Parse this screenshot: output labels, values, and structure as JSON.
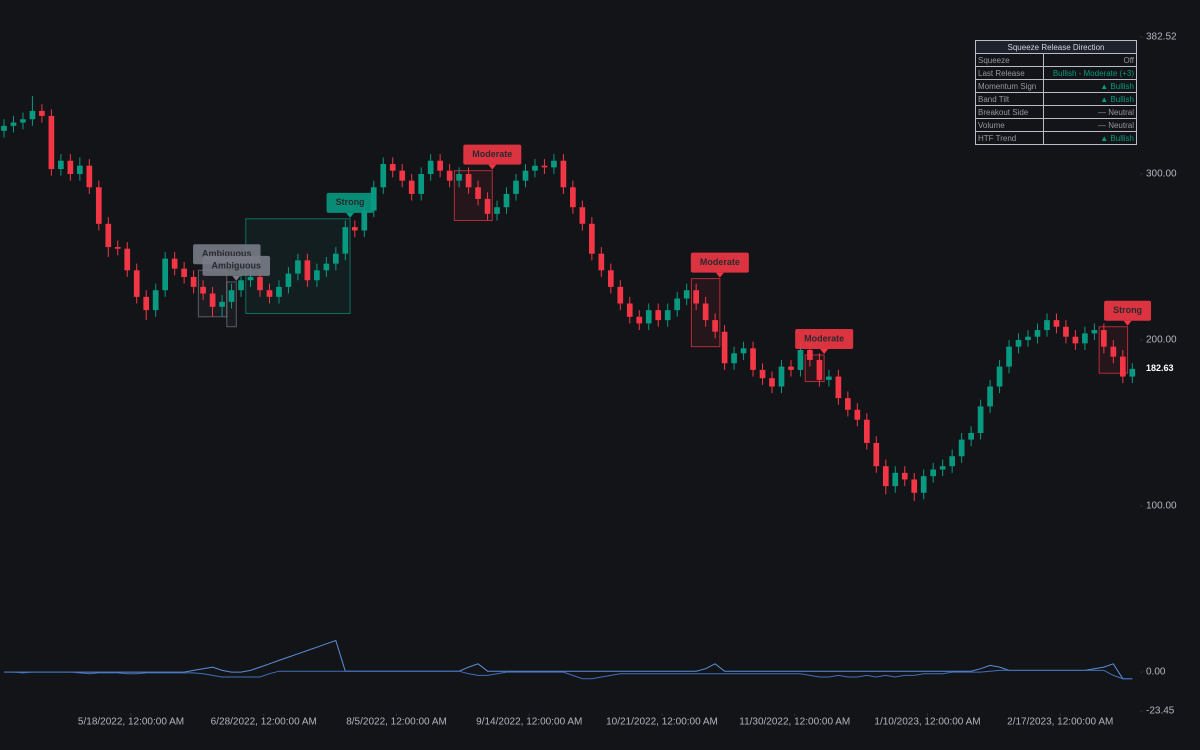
{
  "chart_data": {
    "type": "candlestick",
    "up_color": "#089981",
    "down_color": "#f23645",
    "line_color": "#5b8fd8",
    "ylim": [
      -23.45,
      382.52
    ],
    "yticks": [
      382.52,
      {
        "value": 300,
        "label": "300.00"
      },
      {
        "value": 200,
        "label": "200.00"
      },
      {
        "value": 100,
        "label": "100.00"
      },
      {
        "value": 0,
        "label": "0.00"
      },
      -23.45
    ],
    "xlim": [
      -0.42,
      119.6
    ],
    "xticks": [
      {
        "value": 13.4,
        "label": "5/18/2022, 12:00:00 AM"
      },
      {
        "value": 27.4,
        "label": "6/28/2022, 12:00:00 AM"
      },
      {
        "value": 41.4,
        "label": "8/5/2022, 12:00:00 AM"
      },
      {
        "value": 55.4,
        "label": "9/14/2022, 12:00:00 AM"
      },
      {
        "value": 69.4,
        "label": "10/21/2022, 12:00:00 AM"
      },
      {
        "value": 83.4,
        "label": "11/30/2022, 12:00:00 AM"
      },
      {
        "value": 97.4,
        "label": "1/10/2023, 12:00:00 AM"
      },
      {
        "value": 111.4,
        "label": "2/17/2023, 12:00:00 AM"
      }
    ],
    "open": [
      326,
      329,
      331,
      333,
      338,
      335,
      303,
      308,
      300,
      305,
      292,
      270,
      256,
      255,
      242,
      226,
      218,
      230,
      249,
      243,
      238,
      232,
      228,
      220,
      223,
      230,
      236,
      238,
      230,
      226,
      232,
      240,
      248,
      236,
      242,
      246,
      252,
      268,
      266,
      278,
      292,
      306,
      302,
      296,
      288,
      300,
      308,
      302,
      296,
      300,
      292,
      285,
      276,
      280,
      288,
      296,
      302,
      305,
      304,
      308,
      292,
      280,
      270,
      252,
      242,
      232,
      222,
      214,
      210,
      218,
      212,
      218,
      225,
      230,
      222,
      212,
      205,
      186,
      192,
      195,
      182,
      177,
      172,
      184,
      182,
      194,
      188,
      176,
      178,
      165,
      158,
      152,
      138,
      124,
      112,
      120,
      116,
      108,
      118,
      122,
      124,
      130,
      140,
      144,
      160,
      172,
      184,
      196,
      200,
      202,
      206,
      212,
      208,
      202,
      198,
      204,
      206,
      196,
      190,
      178
    ],
    "high": [
      333,
      335,
      337,
      347,
      342,
      339,
      312,
      312,
      310,
      309,
      296,
      274,
      260,
      259,
      246,
      230,
      234,
      253,
      253,
      247,
      242,
      236,
      232,
      227,
      234,
      240,
      242,
      242,
      234,
      236,
      244,
      252,
      252,
      246,
      250,
      256,
      272,
      272,
      282,
      296,
      310,
      310,
      306,
      300,
      304,
      312,
      312,
      306,
      304,
      304,
      296,
      289,
      284,
      292,
      300,
      306,
      309,
      309,
      312,
      312,
      296,
      284,
      274,
      256,
      246,
      236,
      226,
      218,
      222,
      222,
      222,
      229,
      234,
      234,
      226,
      216,
      209,
      196,
      199,
      199,
      186,
      181,
      188,
      188,
      198,
      198,
      192,
      182,
      182,
      169,
      162,
      156,
      142,
      128,
      124,
      124,
      120,
      122,
      126,
      128,
      134,
      144,
      148,
      164,
      176,
      188,
      200,
      204,
      206,
      210,
      216,
      216,
      212,
      206,
      208,
      210,
      210,
      200,
      194,
      186
    ],
    "low": [
      322,
      325,
      327,
      329,
      331,
      299,
      299,
      296,
      296,
      288,
      266,
      250,
      251,
      238,
      222,
      212,
      214,
      226,
      239,
      234,
      228,
      224,
      214,
      214,
      219,
      226,
      232,
      226,
      222,
      222,
      228,
      236,
      232,
      232,
      238,
      242,
      248,
      262,
      262,
      274,
      288,
      298,
      292,
      284,
      284,
      296,
      298,
      292,
      292,
      288,
      281,
      272,
      272,
      276,
      284,
      292,
      298,
      300,
      300,
      288,
      276,
      266,
      248,
      238,
      228,
      218,
      210,
      206,
      206,
      208,
      208,
      214,
      221,
      218,
      208,
      201,
      182,
      182,
      188,
      178,
      173,
      168,
      168,
      178,
      178,
      184,
      172,
      172,
      161,
      154,
      148,
      134,
      120,
      107,
      108,
      112,
      103,
      104,
      114,
      118,
      120,
      126,
      136,
      140,
      156,
      168,
      180,
      192,
      196,
      198,
      202,
      204,
      198,
      194,
      194,
      200,
      192,
      186,
      174,
      174
    ],
    "close": [
      329,
      331,
      333,
      338,
      335,
      303,
      308,
      300,
      305,
      292,
      270,
      256,
      255,
      242,
      226,
      218,
      230,
      249,
      243,
      238,
      232,
      228,
      220,
      223,
      230,
      236,
      238,
      230,
      226,
      232,
      240,
      248,
      236,
      242,
      246,
      252,
      268,
      266,
      278,
      292,
      306,
      302,
      296,
      288,
      300,
      308,
      302,
      296,
      300,
      292,
      285,
      276,
      280,
      288,
      296,
      302,
      305,
      304,
      308,
      292,
      280,
      270,
      252,
      242,
      232,
      222,
      214,
      210,
      218,
      212,
      218,
      225,
      230,
      222,
      212,
      205,
      186,
      192,
      195,
      182,
      177,
      172,
      184,
      182,
      194,
      188,
      176,
      178,
      165,
      158,
      152,
      138,
      124,
      112,
      120,
      116,
      108,
      118,
      122,
      124,
      130,
      140,
      144,
      160,
      172,
      184,
      196,
      200,
      202,
      206,
      212,
      208,
      202,
      198,
      204,
      206,
      196,
      190,
      178,
      182.63
    ],
    "lines": [
      {
        "color": "#5b8fd8",
        "values": [
          0,
          0,
          0,
          0,
          0,
          0,
          0,
          0,
          0,
          0,
          0,
          0,
          0,
          0,
          0,
          0,
          0,
          0,
          0,
          0,
          1,
          2,
          3,
          1,
          0,
          0,
          1,
          3,
          5,
          7,
          9,
          11,
          13,
          15,
          17,
          19,
          0.5,
          0.5,
          0.5,
          0.5,
          0.5,
          0.5,
          0.5,
          0.5,
          0.5,
          0.5,
          0.5,
          0.5,
          0.5,
          3,
          5,
          0.5,
          0.5,
          0.5,
          0.5,
          0.5,
          0.5,
          0.5,
          0.5,
          0.5,
          0.5,
          0.5,
          0.5,
          0.5,
          0.5,
          0.5,
          0.5,
          0.5,
          0.5,
          0.5,
          0.5,
          0.5,
          0.5,
          0.5,
          2,
          5,
          0.5,
          0.5,
          0.5,
          0.5,
          0.5,
          0.5,
          0.5,
          0.5,
          0.5,
          0.5,
          0.5,
          0.5,
          0.5,
          0.5,
          0.5,
          0.5,
          0.5,
          0.5,
          0.5,
          0.5,
          0.5,
          0.5,
          0.5,
          0.5,
          0.5,
          0.5,
          0.5,
          2,
          4,
          3,
          1,
          1,
          1,
          1,
          1,
          1,
          1,
          1,
          1,
          2,
          3,
          5,
          -4,
          -4
        ]
      },
      {
        "color": "#3f6fb8",
        "values": [
          0,
          0,
          -0.5,
          0,
          0,
          0,
          0,
          0,
          -0.5,
          -1,
          -0.5,
          -0.5,
          -0.5,
          -1,
          -1,
          -0.5,
          -0.5,
          -0.5,
          -0.5,
          -0.5,
          -0.5,
          -1,
          -2,
          -3,
          -3,
          -3,
          -3,
          -3,
          -1,
          0.5,
          0.5,
          0.5,
          0.5,
          0.5,
          0.5,
          0.5,
          0.5,
          0.5,
          0.5,
          0.5,
          0.5,
          0.5,
          0.5,
          0.5,
          0.5,
          0.5,
          0.5,
          0.5,
          0.5,
          -1,
          -2,
          -2,
          -1,
          0,
          0,
          0,
          0,
          0,
          0,
          0,
          -2,
          -4,
          -4,
          -3,
          -2,
          -1,
          -1,
          -1,
          -1,
          -1,
          -1,
          -1,
          -1,
          -1,
          -1,
          -1,
          -1,
          -1,
          -1,
          -1,
          -1,
          -1,
          -1,
          -1,
          -1,
          -2,
          -3,
          -3,
          -2,
          -3,
          -3,
          -2,
          -3,
          -2,
          -3,
          -2,
          -2,
          -1,
          -1,
          -1,
          0,
          0,
          0,
          0,
          0.5,
          1,
          1,
          1,
          1,
          1,
          1,
          1,
          1,
          1,
          1,
          1,
          1,
          -2,
          -4,
          -4
        ]
      }
    ],
    "zones": [
      {
        "label": "Ambiguous",
        "color": "#787b86",
        "start": 21,
        "end": 23,
        "high": 242,
        "low": 214
      },
      {
        "label": "Ambiguous",
        "color": "#787b86",
        "start": 24,
        "end": 24,
        "high": 235,
        "low": 208
      },
      {
        "label": "Strong",
        "color": "#089981",
        "start": 26,
        "end": 36,
        "high": 273,
        "low": 216
      },
      {
        "label": "Moderate",
        "color": "#f23645",
        "start": 48,
        "end": 51,
        "high": 302,
        "low": 272
      },
      {
        "label": "Moderate",
        "color": "#f23645",
        "start": 73,
        "end": 75,
        "high": 237,
        "low": 196
      },
      {
        "label": "Moderate",
        "color": "#f23645",
        "start": 85,
        "end": 86,
        "high": 191,
        "low": 175
      },
      {
        "label": "Strong",
        "color": "#f23645",
        "start": 116,
        "end": 118,
        "high": 208,
        "low": 180
      }
    ]
  },
  "table": {
    "title": "Squeeze Release Direction",
    "rows": [
      [
        "Squeeze",
        "Off"
      ],
      [
        "Last Release",
        "Bullish - Moderate (+3)"
      ],
      [
        "Momentum Sign",
        "▲ Bullish"
      ],
      [
        "Band Tilt",
        "▲ Bullish"
      ],
      [
        "Breakout Side",
        "— Neutral"
      ],
      [
        "Volume",
        "— Neutral"
      ],
      [
        "HTF Trend",
        "▲ Bullish"
      ]
    ]
  }
}
